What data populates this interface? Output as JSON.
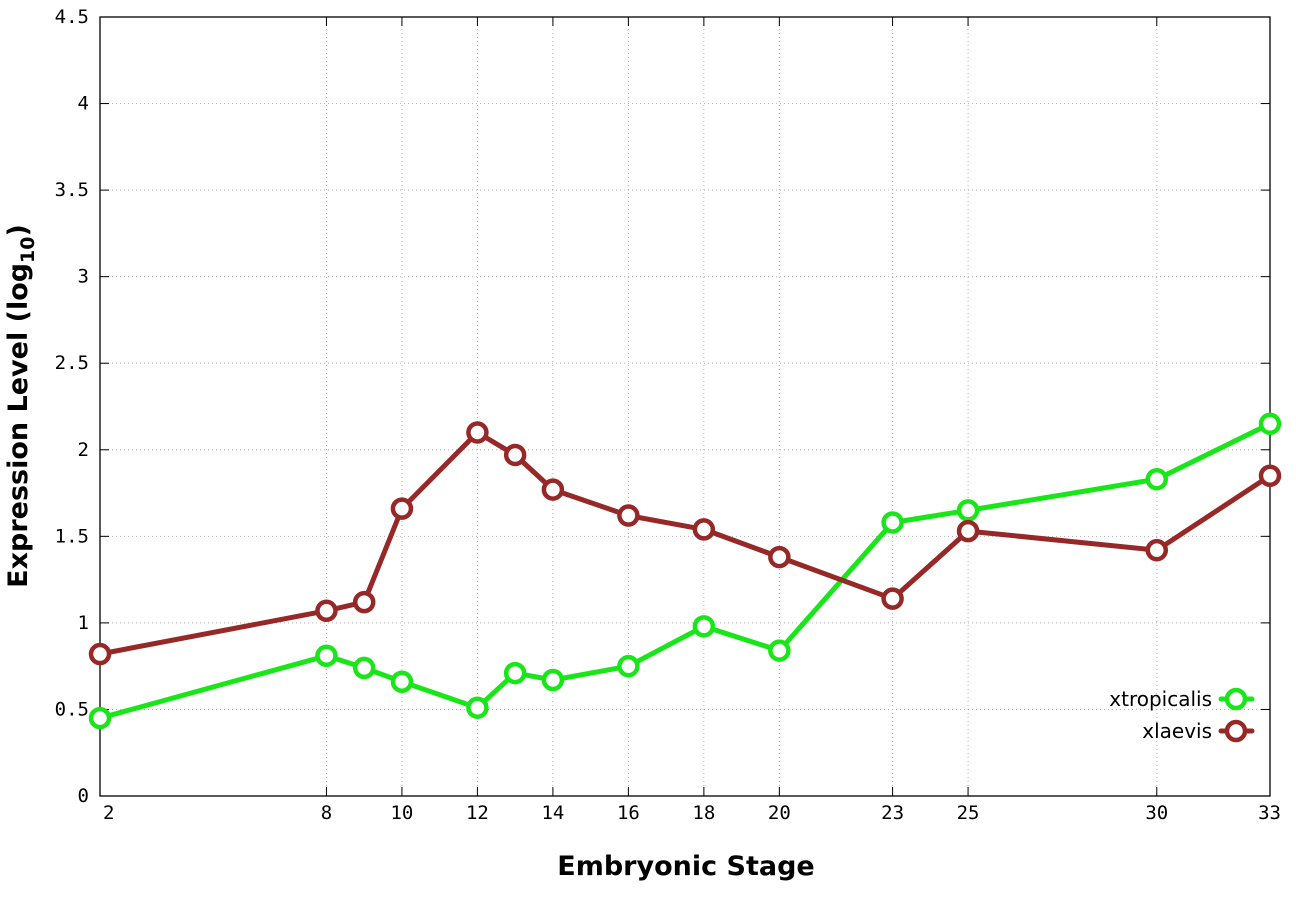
{
  "chart_data": {
    "type": "line",
    "xlabel": "Embryonic Stage",
    "ylabel": "Expression Level (log",
    "ylabel_subscript": "10",
    "ylabel_suffix": ")",
    "xlim": [
      2,
      33
    ],
    "ylim": [
      0,
      4.5
    ],
    "x_ticks": [
      2,
      8,
      10,
      12,
      14,
      16,
      18,
      20,
      23,
      25,
      30,
      33
    ],
    "y_ticks": [
      0,
      0.5,
      1,
      1.5,
      2,
      2.5,
      3,
      3.5,
      4,
      4.5
    ],
    "y_tick_labels": [
      "0",
      "0.5",
      "1",
      "1.5",
      "2",
      "2.5",
      "3",
      "3.5",
      "4",
      "4.5"
    ],
    "grid": true,
    "legend_position": "bottom-right",
    "x": [
      2,
      8,
      9,
      10,
      12,
      13,
      14,
      16,
      18,
      20,
      23,
      25,
      30,
      33
    ],
    "series": [
      {
        "name": "xtropicalis",
        "color": "#19e619",
        "values": [
          0.45,
          0.81,
          0.74,
          0.66,
          0.51,
          0.71,
          0.67,
          0.75,
          0.98,
          0.84,
          1.58,
          1.65,
          1.83,
          2.15
        ]
      },
      {
        "name": "xlaevis",
        "color": "#962828",
        "values": [
          0.82,
          1.07,
          1.12,
          1.66,
          2.1,
          1.97,
          1.77,
          1.62,
          1.54,
          1.38,
          1.14,
          1.53,
          1.42,
          1.85
        ]
      }
    ]
  }
}
